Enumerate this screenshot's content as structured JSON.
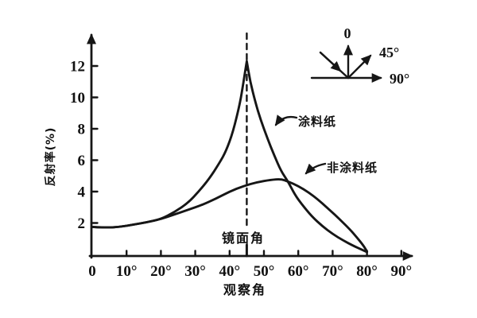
{
  "figure": {
    "background": "#ffffff",
    "ink_color": "#161616"
  },
  "chart_data": {
    "type": "line",
    "title": "",
    "xlabel": "观察角",
    "ylabel": "反射率(%)",
    "xlim": [
      0,
      95
    ],
    "ylim": [
      0,
      14
    ],
    "grid": false,
    "legend_position": "inline-annotations",
    "xticks": {
      "values": [
        0,
        10,
        20,
        30,
        40,
        50,
        60,
        70,
        80,
        90
      ],
      "labels": [
        "0",
        "10°",
        "20°",
        "30°",
        "40°",
        "50°",
        "60°",
        "70°",
        "80°",
        "90°"
      ]
    },
    "yticks": {
      "values": [
        2,
        4,
        6,
        8,
        10,
        12
      ],
      "labels": [
        "2",
        "4",
        "6",
        "8",
        "10",
        "12"
      ]
    },
    "specular_line": {
      "x": 45,
      "label": "镜面角",
      "style": "dashed"
    },
    "series": [
      {
        "name": "涂料纸",
        "points": [
          [
            0,
            1.75
          ],
          [
            4,
            1.7
          ],
          [
            8,
            1.75
          ],
          [
            12,
            1.9
          ],
          [
            16,
            2.05
          ],
          [
            20,
            2.25
          ],
          [
            24,
            2.7
          ],
          [
            28,
            3.3
          ],
          [
            31,
            4.0
          ],
          [
            34,
            4.8
          ],
          [
            37,
            5.8
          ],
          [
            39,
            6.6
          ],
          [
            41,
            7.8
          ],
          [
            43,
            9.6
          ],
          [
            44,
            10.9
          ],
          [
            45,
            12.3
          ],
          [
            45,
            12.3
          ],
          [
            46,
            11.0
          ],
          [
            47.5,
            9.7
          ],
          [
            49,
            8.6
          ],
          [
            51,
            7.4
          ],
          [
            53,
            6.3
          ],
          [
            55,
            5.3
          ],
          [
            57,
            4.65
          ],
          [
            59,
            3.8
          ],
          [
            61,
            3.2
          ],
          [
            64,
            2.4
          ],
          [
            67,
            1.8
          ],
          [
            70,
            1.3
          ],
          [
            73,
            0.9
          ],
          [
            76,
            0.55
          ],
          [
            78,
            0.35
          ],
          [
            80,
            0.15
          ]
        ]
      },
      {
        "name": "非涂料纸",
        "points": [
          [
            0,
            1.75
          ],
          [
            4,
            1.7
          ],
          [
            8,
            1.75
          ],
          [
            12,
            1.9
          ],
          [
            16,
            2.05
          ],
          [
            20,
            2.25
          ],
          [
            24,
            2.55
          ],
          [
            28,
            2.85
          ],
          [
            32,
            3.15
          ],
          [
            36,
            3.55
          ],
          [
            40,
            4.0
          ],
          [
            44,
            4.35
          ],
          [
            48,
            4.6
          ],
          [
            52,
            4.75
          ],
          [
            55,
            4.8
          ],
          [
            57,
            4.65
          ],
          [
            60,
            4.35
          ],
          [
            63,
            3.95
          ],
          [
            66,
            3.45
          ],
          [
            69,
            2.85
          ],
          [
            72,
            2.25
          ],
          [
            75,
            1.6
          ],
          [
            77,
            1.1
          ],
          [
            79,
            0.55
          ],
          [
            80,
            0.2
          ]
        ]
      }
    ]
  },
  "inset": {
    "labels": {
      "zero": "0",
      "fortyfive": "45°",
      "ninety": "90°"
    }
  }
}
